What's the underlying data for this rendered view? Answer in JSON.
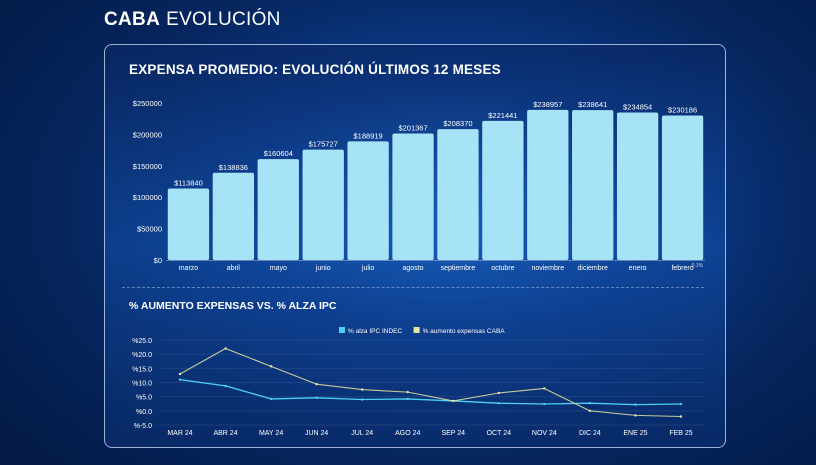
{
  "header": {
    "brand": "CABA",
    "section": "EVOLUCIÓN"
  },
  "chart_data": [
    {
      "type": "bar",
      "title": "EXPENSA PROMEDIO: EVOLUCIÓN ÚLTIMOS 12 MESES",
      "categories": [
        "marzo",
        "abril",
        "mayo",
        "junio",
        "julio",
        "agosto",
        "septiembre",
        "octubre",
        "noviembre",
        "diciembre",
        "enero",
        "febrero"
      ],
      "values": [
        113840,
        138836,
        160604,
        175727,
        188919,
        201367,
        208370,
        221441,
        238957,
        238641,
        234854,
        230186
      ],
      "value_labels": [
        "$113840",
        "$138836",
        "$160604",
        "$175727",
        "$188919",
        "$201367",
        "$208370",
        "$221441",
        "$238957",
        "$238641",
        "$234854",
        "$230186"
      ],
      "yticks": [
        "$250000",
        "$200000",
        "$150000",
        "$100000",
        "$50000",
        "$0"
      ],
      "ylim": [
        0,
        250000
      ],
      "annotation": "0.1%",
      "bar_color": "#a6e3f7"
    },
    {
      "type": "line",
      "title": "% AUMENTO EXPENSAS VS. % ALZA IPC",
      "categories": [
        "MAR 24",
        "ABR 24",
        "MAY 24",
        "JUN 24",
        "JUL 24",
        "AGO 24",
        "SEP 24",
        "OCT 24",
        "NOV 24",
        "DIC 24",
        "ENE 25",
        "FEB 25"
      ],
      "yticks": [
        "%25.0",
        "%20.0",
        "%15.0",
        "%10.0",
        "%5.0",
        "%0.0",
        "%-5.0"
      ],
      "ylim": [
        -5,
        25
      ],
      "legend_position": "top",
      "series": [
        {
          "name": "% alza IPC INDEC",
          "color": "#4fd0f0",
          "values": [
            11.0,
            8.8,
            4.2,
            4.6,
            4.0,
            4.2,
            3.5,
            2.7,
            2.4,
            2.7,
            2.2,
            2.4
          ]
        },
        {
          "name": "% aumento expensas CABA",
          "color": "#e8e6a0",
          "values": [
            13.0,
            22.0,
            15.7,
            9.4,
            7.5,
            6.6,
            3.5,
            6.3,
            7.9,
            0.0,
            -1.6,
            -2.0
          ]
        }
      ]
    }
  ]
}
